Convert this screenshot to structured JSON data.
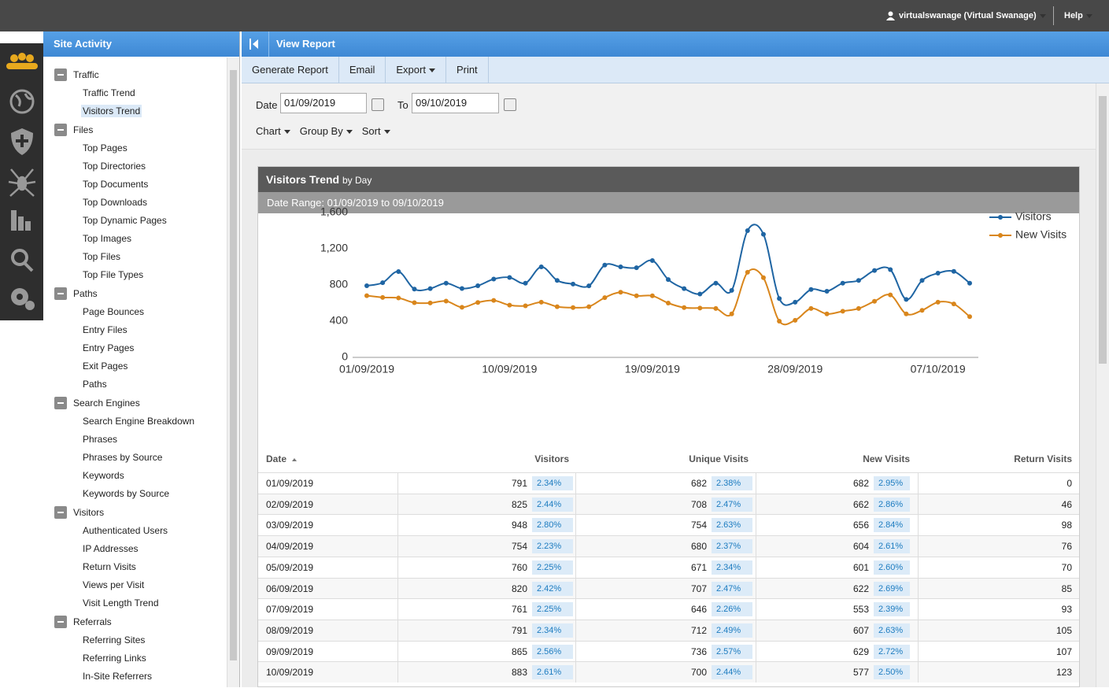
{
  "top_bar": {
    "user": "virtualswanage (Virtual Swanage)",
    "help": "Help"
  },
  "sidebar": {
    "title": "Site Activity",
    "groups": [
      {
        "label": "Traffic",
        "items": [
          "Traffic Trend",
          "Visitors Trend"
        ]
      },
      {
        "label": "Files",
        "items": [
          "Top Pages",
          "Top Directories",
          "Top Documents",
          "Top Downloads",
          "Top Dynamic Pages",
          "Top Images",
          "Top Files",
          "Top File Types"
        ]
      },
      {
        "label": "Paths",
        "items": [
          "Page Bounces",
          "Entry Files",
          "Entry Pages",
          "Exit Pages",
          "Paths"
        ]
      },
      {
        "label": "Search Engines",
        "items": [
          "Search Engine Breakdown",
          "Phrases",
          "Phrases by Source",
          "Keywords",
          "Keywords by Source"
        ]
      },
      {
        "label": "Visitors",
        "items": [
          "Authenticated Users",
          "IP Addresses",
          "Return Visits",
          "Views per Visit",
          "Visit Length Trend"
        ]
      },
      {
        "label": "Referrals",
        "items": [
          "Referring Sites",
          "Referring Links",
          "In-Site Referrers"
        ]
      }
    ]
  },
  "report_header": {
    "title": "View Report"
  },
  "toolbar": [
    "Generate Report",
    "Email",
    "Export",
    "Print"
  ],
  "filters": {
    "date_label": "Date",
    "date_from": "01/09/2019",
    "to_label": "To",
    "date_to": "09/10/2019",
    "menus": [
      "Chart",
      "Group By",
      "Sort"
    ]
  },
  "report": {
    "title": "Visitors Trend",
    "subtitle": "by Day",
    "date_range": "Date Range: 01/09/2019 to 09/10/2019"
  },
  "chart_data": {
    "type": "line",
    "categories": [
      "01/09/2019",
      null,
      null,
      null,
      null,
      null,
      null,
      null,
      null,
      "10/09/2019",
      null,
      null,
      null,
      null,
      null,
      null,
      null,
      null,
      "19/09/2019",
      null,
      null,
      null,
      null,
      null,
      null,
      null,
      null,
      "28/09/2019",
      null,
      null,
      null,
      null,
      null,
      null,
      null,
      null,
      "07/10/2019",
      null,
      null
    ],
    "series": [
      {
        "name": "Visitors",
        "color": "#1f65a3",
        "values": [
          791,
          825,
          948,
          754,
          760,
          820,
          761,
          791,
          865,
          883,
          820,
          1000,
          850,
          810,
          790,
          1020,
          1000,
          990,
          1070,
          860,
          760,
          700,
          820,
          740,
          1400,
          1360,
          650,
          610,
          750,
          730,
          820,
          850,
          960,
          970,
          640,
          850,
          930,
          950,
          820
        ]
      },
      {
        "name": "New Visits",
        "color": "#d9861c",
        "values": [
          682,
          662,
          656,
          604,
          601,
          622,
          553,
          607,
          629,
          577,
          570,
          610,
          560,
          550,
          560,
          660,
          720,
          680,
          680,
          600,
          550,
          545,
          540,
          480,
          940,
          880,
          400,
          410,
          540,
          480,
          510,
          540,
          620,
          690,
          480,
          520,
          610,
          590,
          450
        ]
      }
    ],
    "ylim": [
      0,
      1600
    ],
    "yticks": [
      0,
      400,
      800,
      {
        "value": 1200,
        "label": "1,200"
      },
      {
        "value": 1600,
        "label": "1,600"
      }
    ],
    "legend": "upper right"
  },
  "table": {
    "columns": [
      "Date",
      "Visitors",
      "Unique Visits",
      "New Visits",
      "Return Visits"
    ],
    "rows": [
      [
        "01/09/2019",
        791,
        "2.34%",
        682,
        "2.38%",
        682,
        "2.95%",
        0
      ],
      [
        "02/09/2019",
        825,
        "2.44%",
        708,
        "2.47%",
        662,
        "2.86%",
        46
      ],
      [
        "03/09/2019",
        948,
        "2.80%",
        754,
        "2.63%",
        656,
        "2.84%",
        98
      ],
      [
        "04/09/2019",
        754,
        "2.23%",
        680,
        "2.37%",
        604,
        "2.61%",
        76
      ],
      [
        "05/09/2019",
        760,
        "2.25%",
        671,
        "2.34%",
        601,
        "2.60%",
        70
      ],
      [
        "06/09/2019",
        820,
        "2.42%",
        707,
        "2.47%",
        622,
        "2.69%",
        85
      ],
      [
        "07/09/2019",
        761,
        "2.25%",
        646,
        "2.26%",
        553,
        "2.39%",
        93
      ],
      [
        "08/09/2019",
        791,
        "2.34%",
        712,
        "2.49%",
        607,
        "2.63%",
        105
      ],
      [
        "09/09/2019",
        865,
        "2.56%",
        736,
        "2.57%",
        629,
        "2.72%",
        107
      ],
      [
        "10/09/2019",
        883,
        "2.61%",
        700,
        "2.44%",
        577,
        "2.50%",
        123
      ]
    ]
  }
}
